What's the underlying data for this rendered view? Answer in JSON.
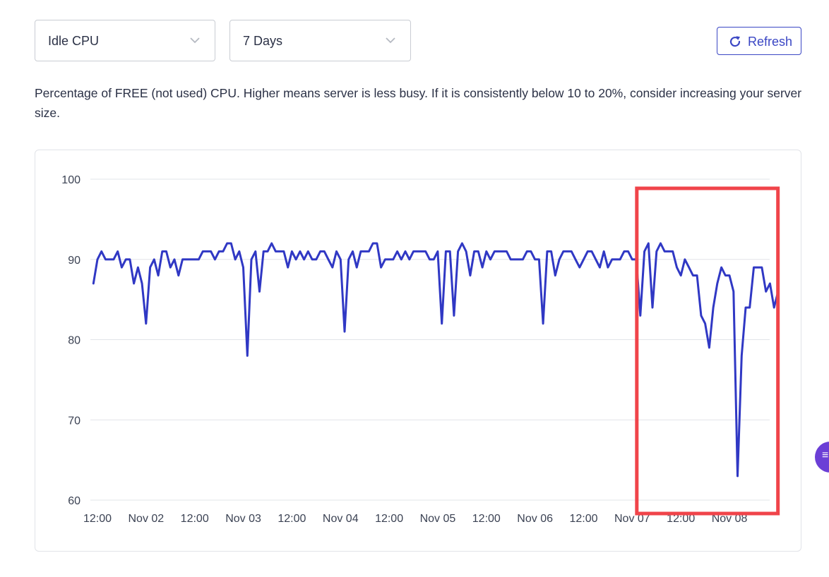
{
  "controls": {
    "metric_select": {
      "value": "Idle CPU",
      "icon": "chevron-down-icon"
    },
    "range_select": {
      "value": "7 Days",
      "icon": "chevron-down-icon"
    },
    "refresh_button": {
      "label": "Refresh",
      "icon": "refresh-icon"
    }
  },
  "description": "Percentage of FREE (not used) CPU. Higher means server is less busy. If it is consistently below 10 to 20%, consider increasing your server size.",
  "colors": {
    "accent": "#3a46c4",
    "line": "#3038c4",
    "highlight_box": "#f0444a",
    "badge": "#6b3fd6"
  },
  "side_badge": {
    "icon": "chat-menu-icon"
  },
  "chart_data": {
    "type": "line",
    "title": "",
    "xlabel": "",
    "ylabel": "",
    "ylim": [
      60,
      100
    ],
    "yticks": [
      60,
      70,
      80,
      90,
      100
    ],
    "x_tick_labels": [
      "12:00",
      "Nov 02",
      "12:00",
      "Nov 03",
      "12:00",
      "Nov 04",
      "12:00",
      "Nov 05",
      "12:00",
      "Nov 06",
      "12:00",
      "Nov 07",
      "12:00",
      "Nov 08"
    ],
    "x_tick_times": [
      "2023-11-01T12:00",
      "2023-11-02T00:00",
      "2023-11-02T12:00",
      "2023-11-03T00:00",
      "2023-11-03T12:00",
      "2023-11-04T00:00",
      "2023-11-04T12:00",
      "2023-11-05T00:00",
      "2023-11-05T12:00",
      "2023-11-06T00:00",
      "2023-11-06T12:00",
      "2023-11-07T00:00",
      "2023-11-07T12:00",
      "2023-11-08T00:00"
    ],
    "grid": true,
    "highlight": {
      "from": "2023-11-07T02:00",
      "to": "2023-11-08T09:00",
      "color": "#f0444a"
    },
    "series": [
      {
        "color": "#3038c4",
        "points": [
          [
            "2023-11-01T11:00",
            87
          ],
          [
            "2023-11-01T12:00",
            90
          ],
          [
            "2023-11-01T13:00",
            91
          ],
          [
            "2023-11-01T14:00",
            90
          ],
          [
            "2023-11-01T16:00",
            90
          ],
          [
            "2023-11-01T17:00",
            91
          ],
          [
            "2023-11-01T18:00",
            89
          ],
          [
            "2023-11-01T19:00",
            90
          ],
          [
            "2023-11-01T20:00",
            90
          ],
          [
            "2023-11-01T21:00",
            87
          ],
          [
            "2023-11-01T22:00",
            89
          ],
          [
            "2023-11-01T23:00",
            87
          ],
          [
            "2023-11-02T00:00",
            82
          ],
          [
            "2023-11-02T01:00",
            89
          ],
          [
            "2023-11-02T02:00",
            90
          ],
          [
            "2023-11-02T03:00",
            88
          ],
          [
            "2023-11-02T04:00",
            91
          ],
          [
            "2023-11-02T05:00",
            91
          ],
          [
            "2023-11-02T06:00",
            89
          ],
          [
            "2023-11-02T07:00",
            90
          ],
          [
            "2023-11-02T08:00",
            88
          ],
          [
            "2023-11-02T09:00",
            90
          ],
          [
            "2023-11-02T13:00",
            90
          ],
          [
            "2023-11-02T14:00",
            91
          ],
          [
            "2023-11-02T16:00",
            91
          ],
          [
            "2023-11-02T17:00",
            90
          ],
          [
            "2023-11-02T18:00",
            91
          ],
          [
            "2023-11-02T19:00",
            91
          ],
          [
            "2023-11-02T20:00",
            92
          ],
          [
            "2023-11-02T21:00",
            92
          ],
          [
            "2023-11-02T22:00",
            90
          ],
          [
            "2023-11-02T23:00",
            91
          ],
          [
            "2023-11-03T00:00",
            89
          ],
          [
            "2023-11-03T01:00",
            78
          ],
          [
            "2023-11-03T02:00",
            90
          ],
          [
            "2023-11-03T03:00",
            91
          ],
          [
            "2023-11-03T04:00",
            86
          ],
          [
            "2023-11-03T05:00",
            91
          ],
          [
            "2023-11-03T06:00",
            91
          ],
          [
            "2023-11-03T07:00",
            92
          ],
          [
            "2023-11-03T08:00",
            91
          ],
          [
            "2023-11-03T10:00",
            91
          ],
          [
            "2023-11-03T11:00",
            89
          ],
          [
            "2023-11-03T12:00",
            91
          ],
          [
            "2023-11-03T13:00",
            90
          ],
          [
            "2023-11-03T14:00",
            91
          ],
          [
            "2023-11-03T15:00",
            90
          ],
          [
            "2023-11-03T16:00",
            91
          ],
          [
            "2023-11-03T17:00",
            90
          ],
          [
            "2023-11-03T18:00",
            90
          ],
          [
            "2023-11-03T19:00",
            91
          ],
          [
            "2023-11-03T20:00",
            91
          ],
          [
            "2023-11-03T21:00",
            90
          ],
          [
            "2023-11-03T22:00",
            89
          ],
          [
            "2023-11-03T23:00",
            91
          ],
          [
            "2023-11-04T00:00",
            90
          ],
          [
            "2023-11-04T01:00",
            81
          ],
          [
            "2023-11-04T02:00",
            90
          ],
          [
            "2023-11-04T03:00",
            91
          ],
          [
            "2023-11-04T04:00",
            89
          ],
          [
            "2023-11-04T05:00",
            91
          ],
          [
            "2023-11-04T07:00",
            91
          ],
          [
            "2023-11-04T08:00",
            92
          ],
          [
            "2023-11-04T09:00",
            92
          ],
          [
            "2023-11-04T10:00",
            89
          ],
          [
            "2023-11-04T11:00",
            90
          ],
          [
            "2023-11-04T13:00",
            90
          ],
          [
            "2023-11-04T14:00",
            91
          ],
          [
            "2023-11-04T15:00",
            90
          ],
          [
            "2023-11-04T16:00",
            91
          ],
          [
            "2023-11-04T17:00",
            90
          ],
          [
            "2023-11-04T18:00",
            91
          ],
          [
            "2023-11-04T21:00",
            91
          ],
          [
            "2023-11-04T22:00",
            90
          ],
          [
            "2023-11-04T23:00",
            90
          ],
          [
            "2023-11-05T00:00",
            91
          ],
          [
            "2023-11-05T01:00",
            82
          ],
          [
            "2023-11-05T02:00",
            91
          ],
          [
            "2023-11-05T03:00",
            91
          ],
          [
            "2023-11-05T04:00",
            83
          ],
          [
            "2023-11-05T05:00",
            91
          ],
          [
            "2023-11-05T06:00",
            92
          ],
          [
            "2023-11-05T07:00",
            91
          ],
          [
            "2023-11-05T08:00",
            88
          ],
          [
            "2023-11-05T09:00",
            91
          ],
          [
            "2023-11-05T10:00",
            91
          ],
          [
            "2023-11-05T11:00",
            89
          ],
          [
            "2023-11-05T12:00",
            91
          ],
          [
            "2023-11-05T13:00",
            90
          ],
          [
            "2023-11-05T14:00",
            91
          ],
          [
            "2023-11-05T17:00",
            91
          ],
          [
            "2023-11-05T18:00",
            90
          ],
          [
            "2023-11-05T21:00",
            90
          ],
          [
            "2023-11-05T22:00",
            91
          ],
          [
            "2023-11-05T23:00",
            91
          ],
          [
            "2023-11-06T00:00",
            90
          ],
          [
            "2023-11-06T01:00",
            90
          ],
          [
            "2023-11-06T02:00",
            82
          ],
          [
            "2023-11-06T03:00",
            91
          ],
          [
            "2023-11-06T04:00",
            91
          ],
          [
            "2023-11-06T05:00",
            88
          ],
          [
            "2023-11-06T06:00",
            90
          ],
          [
            "2023-11-06T07:00",
            91
          ],
          [
            "2023-11-06T09:00",
            91
          ],
          [
            "2023-11-06T10:00",
            90
          ],
          [
            "2023-11-06T11:00",
            89
          ],
          [
            "2023-11-06T12:00",
            90
          ],
          [
            "2023-11-06T13:00",
            91
          ],
          [
            "2023-11-06T14:00",
            91
          ],
          [
            "2023-11-06T15:00",
            90
          ],
          [
            "2023-11-06T16:00",
            89
          ],
          [
            "2023-11-06T17:00",
            91
          ],
          [
            "2023-11-06T18:00",
            89
          ],
          [
            "2023-11-06T19:00",
            90
          ],
          [
            "2023-11-06T21:00",
            90
          ],
          [
            "2023-11-06T22:00",
            91
          ],
          [
            "2023-11-06T23:00",
            91
          ],
          [
            "2023-11-07T00:00",
            90
          ],
          [
            "2023-11-07T01:00",
            90
          ],
          [
            "2023-11-07T02:00",
            83
          ],
          [
            "2023-11-07T03:00",
            91
          ],
          [
            "2023-11-07T04:00",
            92
          ],
          [
            "2023-11-07T05:00",
            84
          ],
          [
            "2023-11-07T06:00",
            91
          ],
          [
            "2023-11-07T07:00",
            92
          ],
          [
            "2023-11-07T08:00",
            91
          ],
          [
            "2023-11-07T10:00",
            91
          ],
          [
            "2023-11-07T11:00",
            89
          ],
          [
            "2023-11-07T12:00",
            88
          ],
          [
            "2023-11-07T13:00",
            90
          ],
          [
            "2023-11-07T14:00",
            89
          ],
          [
            "2023-11-07T15:00",
            88
          ],
          [
            "2023-11-07T16:00",
            88
          ],
          [
            "2023-11-07T17:00",
            83
          ],
          [
            "2023-11-07T18:00",
            82
          ],
          [
            "2023-11-07T19:00",
            79
          ],
          [
            "2023-11-07T20:00",
            84
          ],
          [
            "2023-11-07T21:00",
            87
          ],
          [
            "2023-11-07T22:00",
            89
          ],
          [
            "2023-11-07T23:00",
            88
          ],
          [
            "2023-11-08T00:00",
            88
          ],
          [
            "2023-11-08T01:00",
            86
          ],
          [
            "2023-11-08T02:00",
            63
          ],
          [
            "2023-11-08T03:00",
            78
          ],
          [
            "2023-11-08T04:00",
            84
          ],
          [
            "2023-11-08T05:00",
            84
          ],
          [
            "2023-11-08T06:00",
            89
          ],
          [
            "2023-11-08T08:00",
            89
          ],
          [
            "2023-11-08T09:00",
            86
          ],
          [
            "2023-11-08T10:00",
            87
          ],
          [
            "2023-11-08T11:00",
            84
          ],
          [
            "2023-11-08T12:00",
            86
          ]
        ]
      }
    ]
  }
}
